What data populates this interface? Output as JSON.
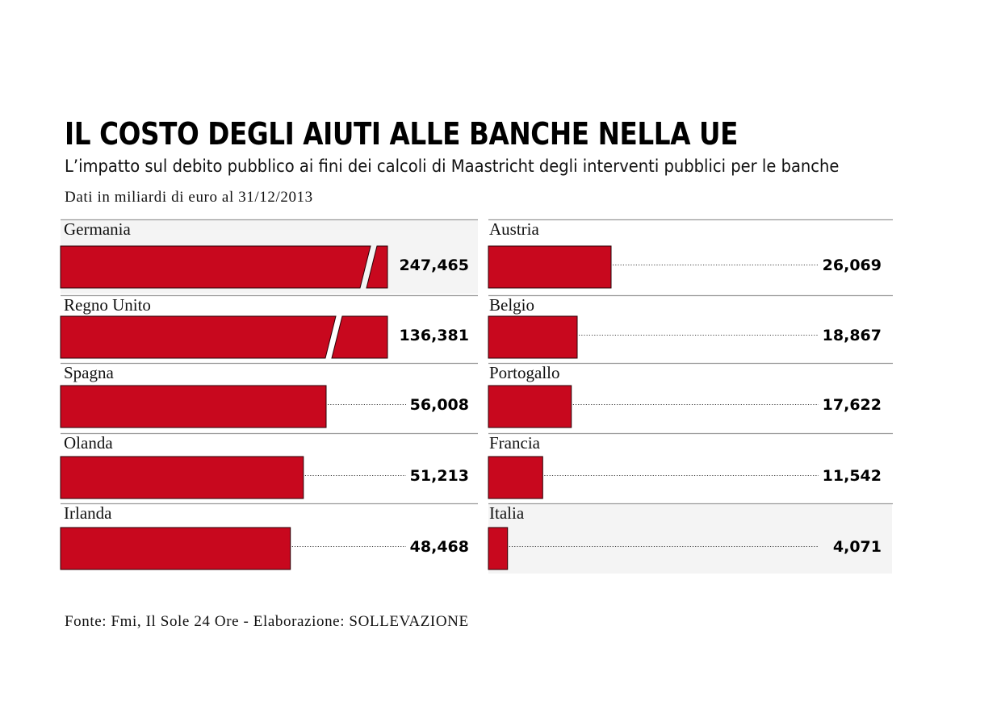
{
  "header": {
    "title": "IL COSTO DEGLI AIUTI ALLE BANCHE NELLA UE",
    "subtitle": "L’impatto sul debito pubblico ai fini dei calcoli di Maastricht degli interventi pubblici per le banche",
    "unit_note": "Dati in miliardi di euro al 31/12/2013"
  },
  "footer": {
    "source": "Fonte: Fmi, Il Sole 24 Ore - Elaborazione: SOLLEVAZIONE"
  },
  "chart_data": {
    "type": "bar",
    "orientation": "horizontal",
    "title": "IL COSTO DEGLI AIUTI ALLE BANCHE NELLA UE",
    "unit": "miliardi di euro",
    "bar_color": "#c8081e",
    "highlight_bg": "#f4f4f4",
    "highlighted": [
      "Germania",
      "Italia"
    ],
    "broken_bars": [
      "Germania",
      "Regno Unito"
    ],
    "categories": [
      "Germania",
      "Regno Unito",
      "Spagna",
      "Olanda",
      "Irlanda",
      "Austria",
      "Belgio",
      "Portogallo",
      "Francia",
      "Italia"
    ],
    "values": [
      247.465,
      136.381,
      56.008,
      51.213,
      48.468,
      26.069,
      18.867,
      17.622,
      11.542,
      4.071
    ],
    "value_labels": [
      "247,465",
      "136,381",
      "56,008",
      "51,213",
      "48,468",
      "26,069",
      "18,867",
      "17,622",
      "11,542",
      "4,071"
    ],
    "columns": [
      [
        "Germania",
        "Regno Unito",
        "Spagna",
        "Olanda",
        "Irlanda"
      ],
      [
        "Austria",
        "Belgio",
        "Portogallo",
        "Francia",
        "Italia"
      ]
    ]
  }
}
